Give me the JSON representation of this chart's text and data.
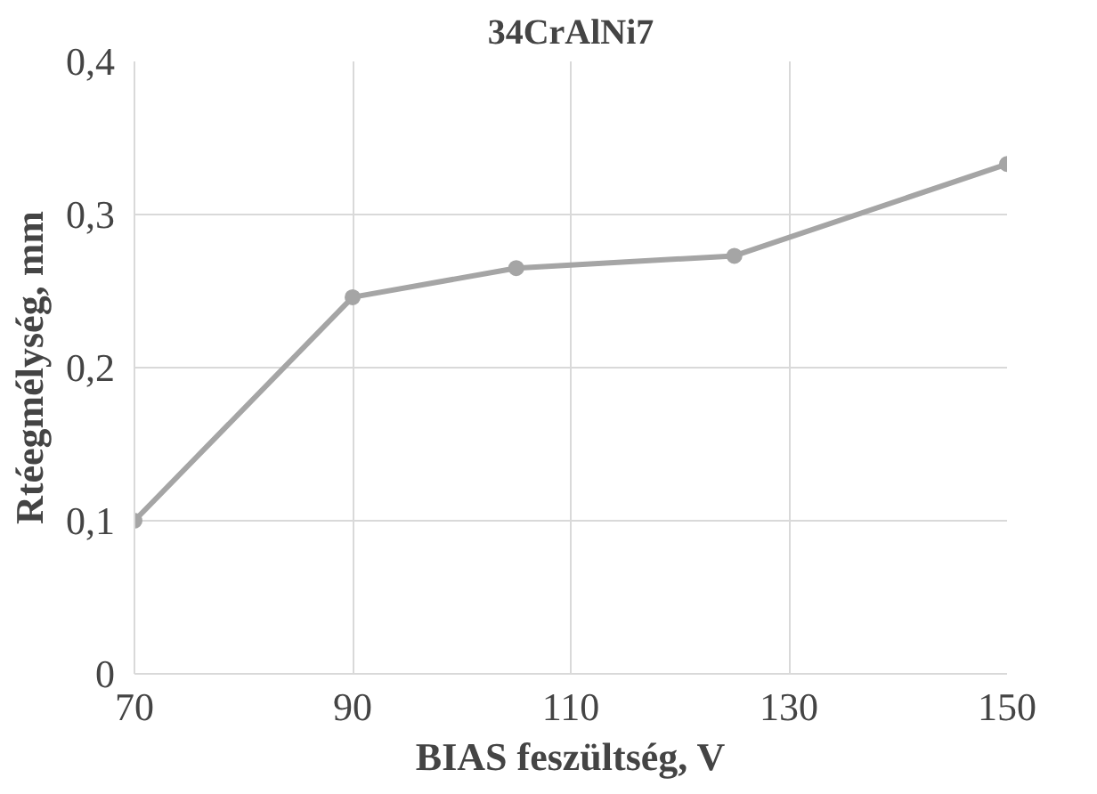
{
  "chart_data": {
    "type": "line",
    "title": "34CrAlNi7",
    "xlabel": "BIAS feszültség, V",
    "ylabel": "Rtéegmélység, mm",
    "x": [
      70,
      90,
      105,
      125,
      150
    ],
    "series": [
      {
        "color": "#a5a5a5",
        "values": [
          0.1,
          0.246,
          0.265,
          0.273,
          0.333
        ]
      }
    ],
    "xlim": [
      70,
      150
    ],
    "xticks": [
      70,
      90,
      110,
      130,
      150
    ],
    "ylim": [
      0,
      0.4
    ],
    "yticks": [
      0,
      {
        "value": 0.1,
        "label": "0,1"
      },
      {
        "value": 0.2,
        "label": "0,2"
      },
      {
        "value": 0.3,
        "label": "0,3"
      },
      {
        "value": 0.4,
        "label": "0,4"
      }
    ],
    "grid": true,
    "marker": "circle",
    "line_style": "solid"
  }
}
